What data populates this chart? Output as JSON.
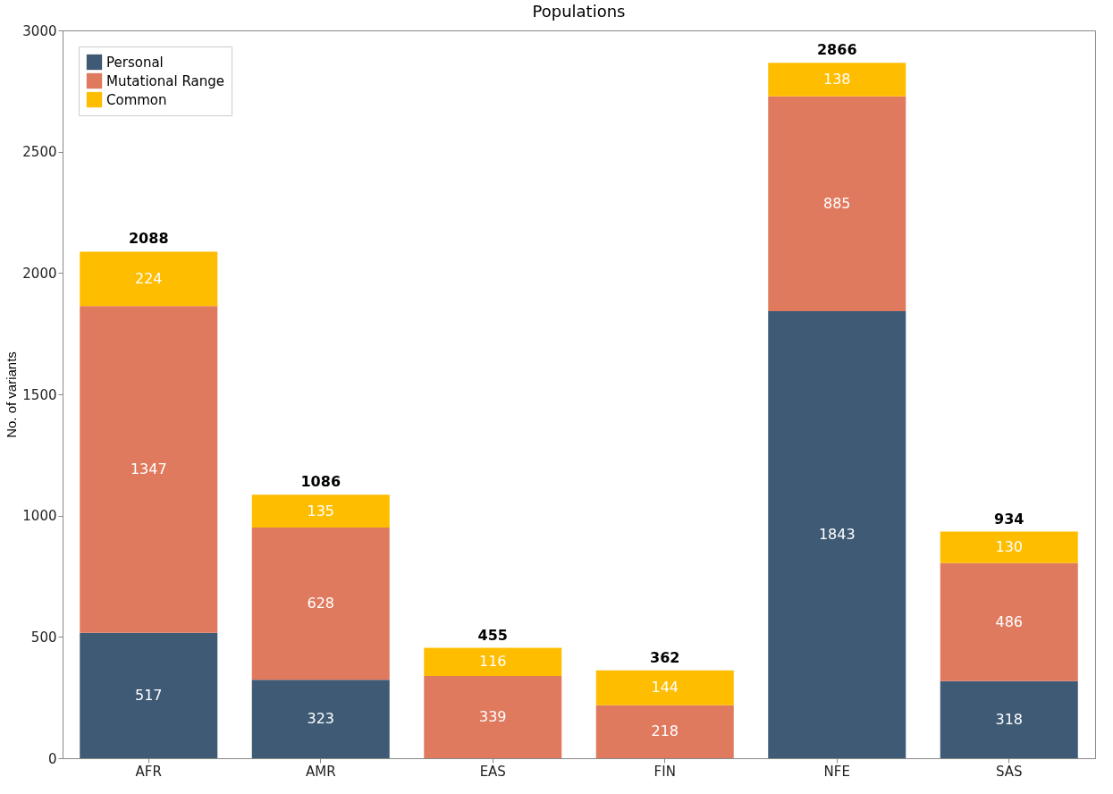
{
  "chart_data": {
    "type": "bar",
    "title": "Populations",
    "ylabel": "No. of variants",
    "categories": [
      "AFR",
      "AMR",
      "EAS",
      "FIN",
      "NFE",
      "SAS"
    ],
    "series": [
      {
        "name": "Personal",
        "color": "#3e5a75",
        "values": [
          517,
          323,
          null,
          null,
          1843,
          318
        ]
      },
      {
        "name": "Mutational Range",
        "color": "#e07a5f",
        "values": [
          1347,
          628,
          339,
          218,
          885,
          486
        ]
      },
      {
        "name": "Common",
        "color": "#ffbd00",
        "values": [
          224,
          135,
          116,
          144,
          138,
          130
        ]
      }
    ],
    "stacked": true,
    "data_labels": true,
    "totals": [
      "2088",
      "1086",
      "455",
      "362",
      "2866",
      "934"
    ],
    "ylim": [
      0,
      3000
    ],
    "yticks": [
      0,
      500,
      1000,
      1500,
      2000,
      2500,
      3000
    ],
    "grid": false,
    "legend": "top left"
  }
}
